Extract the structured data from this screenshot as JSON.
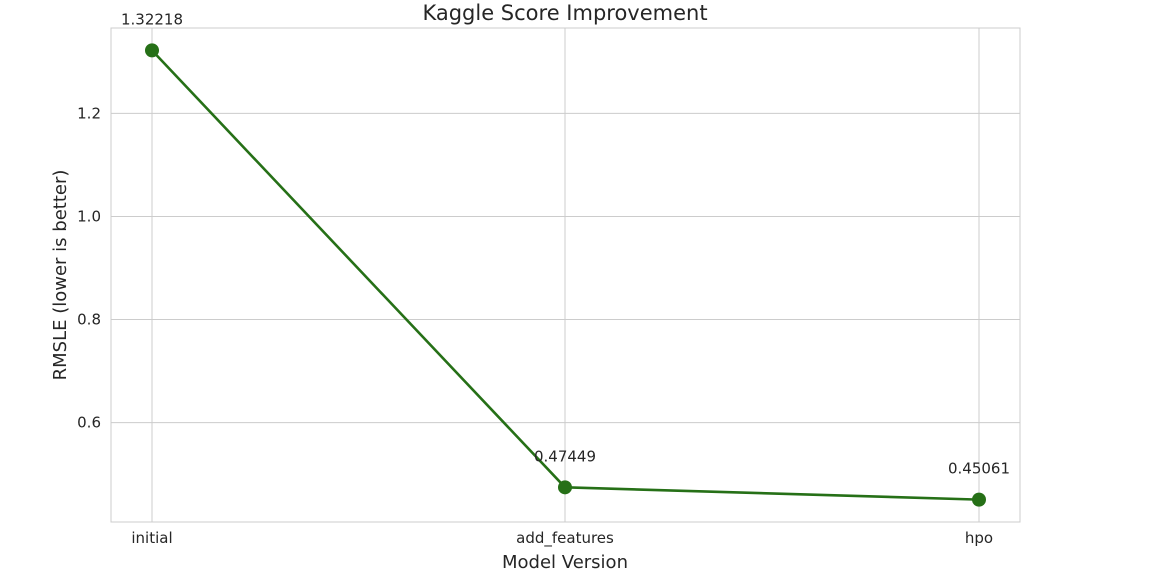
{
  "chart_data": {
    "type": "line",
    "title": "Kaggle Score Improvement",
    "xlabel": "Model Version",
    "ylabel": "RMSLE (lower is better)",
    "categories": [
      "initial",
      "add_features",
      "hpo"
    ],
    "series": [
      {
        "values": [
          1.32218,
          0.47449,
          0.45061
        ],
        "data_labels": [
          "1.32218",
          "0.47449",
          "0.45061"
        ]
      }
    ],
    "ylim": [
      0.4072,
      1.3656
    ],
    "yticks": [
      0.6,
      0.8,
      1.0,
      1.2
    ],
    "ytick_labels": [
      "0.6",
      "0.8",
      "1.0",
      "1.2"
    ],
    "grid": true,
    "line_color": "#267017",
    "grid_color": "#cccccc"
  }
}
